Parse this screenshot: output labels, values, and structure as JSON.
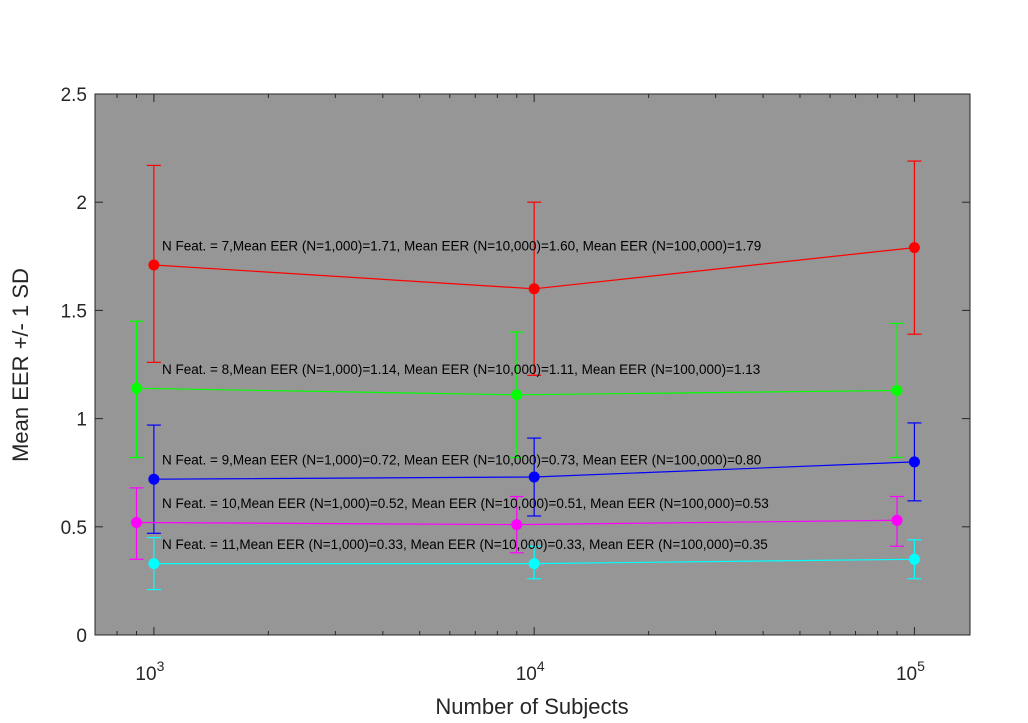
{
  "chart_data": {
    "type": "line",
    "title": "",
    "xlabel": "Number of Subjects",
    "ylabel": "Mean EER +/- 1 SD",
    "x_scale": "log",
    "xlim": [
      700,
      140000
    ],
    "ylim": [
      0,
      2.5
    ],
    "grid": false,
    "background_color": "#969696",
    "x_ticks": [
      {
        "value": 1000,
        "base": "10",
        "exp": "3"
      },
      {
        "value": 10000,
        "base": "10",
        "exp": "4"
      },
      {
        "value": 100000,
        "base": "10",
        "exp": "5"
      }
    ],
    "y_ticks": [
      {
        "value": 0,
        "label": "0"
      },
      {
        "value": 0.5,
        "label": "0.5"
      },
      {
        "value": 1,
        "label": "1"
      },
      {
        "value": 1.5,
        "label": "1.5"
      },
      {
        "value": 2,
        "label": "2"
      },
      {
        "value": 2.5,
        "label": "2.5"
      }
    ],
    "series": [
      {
        "color": "#ff0000",
        "x": [
          1000,
          10000,
          100000
        ],
        "y": [
          1.71,
          1.6,
          1.79
        ],
        "err_low": [
          1.26,
          1.2,
          1.39
        ],
        "err_high": [
          2.17,
          2.0,
          2.19
        ],
        "annotation": "N Feat. = 7,Mean EER (N=1,000)=1.71, Mean EER (N=10,000)=1.60, Mean EER (N=100,000)=1.79",
        "annotation_y": 1.8
      },
      {
        "color": "#00ff00",
        "x": [
          900,
          9000,
          90000
        ],
        "y": [
          1.14,
          1.11,
          1.13
        ],
        "err_low": [
          0.82,
          0.82,
          0.82
        ],
        "err_high": [
          1.45,
          1.4,
          1.44
        ],
        "annotation": "N Feat. = 8,Mean EER (N=1,000)=1.14, Mean EER (N=10,000)=1.11, Mean EER (N=100,000)=1.13",
        "annotation_y": 1.23
      },
      {
        "color": "#0000ff",
        "x": [
          1000,
          10000,
          100000
        ],
        "y": [
          0.72,
          0.73,
          0.8
        ],
        "err_low": [
          0.47,
          0.55,
          0.62
        ],
        "err_high": [
          0.97,
          0.91,
          0.98
        ],
        "annotation": "N Feat. = 9,Mean EER (N=1,000)=0.72, Mean EER (N=10,000)=0.73, Mean EER (N=100,000)=0.80",
        "annotation_y": 0.81
      },
      {
        "color": "#ff00ff",
        "x": [
          900,
          9000,
          90000
        ],
        "y": [
          0.52,
          0.51,
          0.53
        ],
        "err_low": [
          0.35,
          0.38,
          0.41
        ],
        "err_high": [
          0.68,
          0.64,
          0.64
        ],
        "annotation": "N Feat. = 10,Mean EER (N=1,000)=0.52, Mean EER (N=10,000)=0.51, Mean EER (N=100,000)=0.53",
        "annotation_y": 0.61
      },
      {
        "color": "#00ffff",
        "x": [
          1000,
          10000,
          100000
        ],
        "y": [
          0.33,
          0.33,
          0.35
        ],
        "err_low": [
          0.21,
          0.26,
          0.26
        ],
        "err_high": [
          0.45,
          0.41,
          0.44
        ],
        "annotation": "N Feat. = 11,Mean EER (N=1,000)=0.33, Mean EER (N=10,000)=0.33, Mean EER (N=100,000)=0.35",
        "annotation_y": 0.42
      }
    ]
  }
}
